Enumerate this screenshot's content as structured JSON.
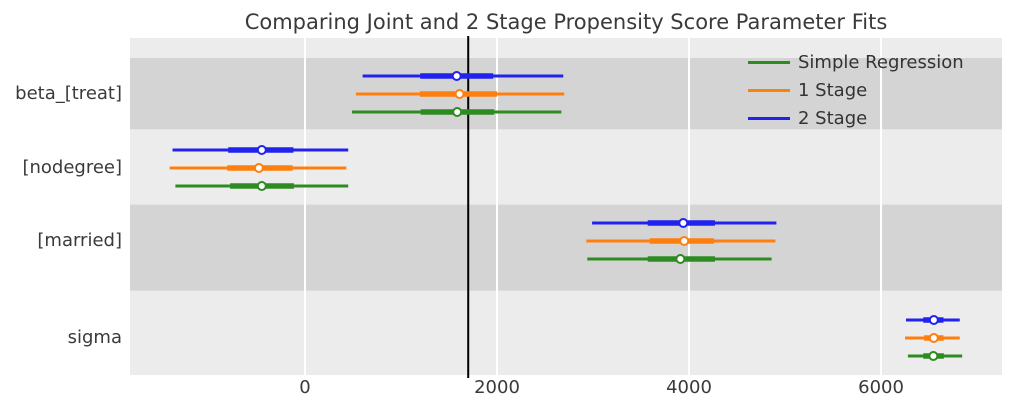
{
  "chart_data": {
    "type": "forest",
    "title": "Comparing Joint and 2 Stage Propensity Score Parameter Fits",
    "xlabel": "",
    "ylabel": "",
    "x_ticks": [
      0,
      2000,
      4000,
      6000
    ],
    "xlim": [
      -1823,
      7260
    ],
    "grid": "vertical-white",
    "reference_line_x": 1700,
    "legend_position": "upper right",
    "legend_entries": [
      "Simple Regression",
      "1 Stage",
      "2 Stage"
    ],
    "colors": {
      "axes_background": "#ececec",
      "shaded_band": "#d4d4d4",
      "gridline": "#ffffff",
      "reference_line": "#000000",
      "text": "#3a3a3a"
    },
    "series": [
      {
        "name": "2 Stage",
        "color": "#2222ee"
      },
      {
        "name": "1 Stage",
        "color": "#ff7f0e"
      },
      {
        "name": "Simple Regression",
        "color": "#2e8b22"
      }
    ],
    "parameters": [
      {
        "label": "beta_[treat]",
        "shaded": true,
        "intervals": [
          {
            "lo": 600,
            "q1": 1200,
            "median": 1580,
            "q3": 1960,
            "hi": 2690
          },
          {
            "lo": 530,
            "q1": 1195,
            "median": 1610,
            "q3": 2000,
            "hi": 2700
          },
          {
            "lo": 490,
            "q1": 1205,
            "median": 1585,
            "q3": 1970,
            "hi": 2670
          }
        ]
      },
      {
        "label": "[nodegree]",
        "shaded": false,
        "intervals": [
          {
            "lo": -1380,
            "q1": -800,
            "median": -450,
            "q3": -120,
            "hi": 450
          },
          {
            "lo": -1410,
            "q1": -810,
            "median": -480,
            "q3": -130,
            "hi": 430
          },
          {
            "lo": -1350,
            "q1": -780,
            "median": -450,
            "q3": -115,
            "hi": 450
          }
        ]
      },
      {
        "label": "[married]",
        "shaded": true,
        "intervals": [
          {
            "lo": 2990,
            "q1": 3570,
            "median": 3940,
            "q3": 4270,
            "hi": 4910
          },
          {
            "lo": 2930,
            "q1": 3590,
            "median": 3950,
            "q3": 4260,
            "hi": 4900
          },
          {
            "lo": 2940,
            "q1": 3570,
            "median": 3910,
            "q3": 4270,
            "hi": 4860
          }
        ]
      },
      {
        "label": "sigma",
        "shaded": false,
        "intervals": [
          {
            "lo": 6260,
            "q1": 6440,
            "median": 6550,
            "q3": 6650,
            "hi": 6820
          },
          {
            "lo": 6250,
            "q1": 6450,
            "median": 6550,
            "q3": 6650,
            "hi": 6820
          },
          {
            "lo": 6280,
            "q1": 6440,
            "median": 6545,
            "q3": 6655,
            "hi": 6845
          }
        ]
      }
    ]
  }
}
